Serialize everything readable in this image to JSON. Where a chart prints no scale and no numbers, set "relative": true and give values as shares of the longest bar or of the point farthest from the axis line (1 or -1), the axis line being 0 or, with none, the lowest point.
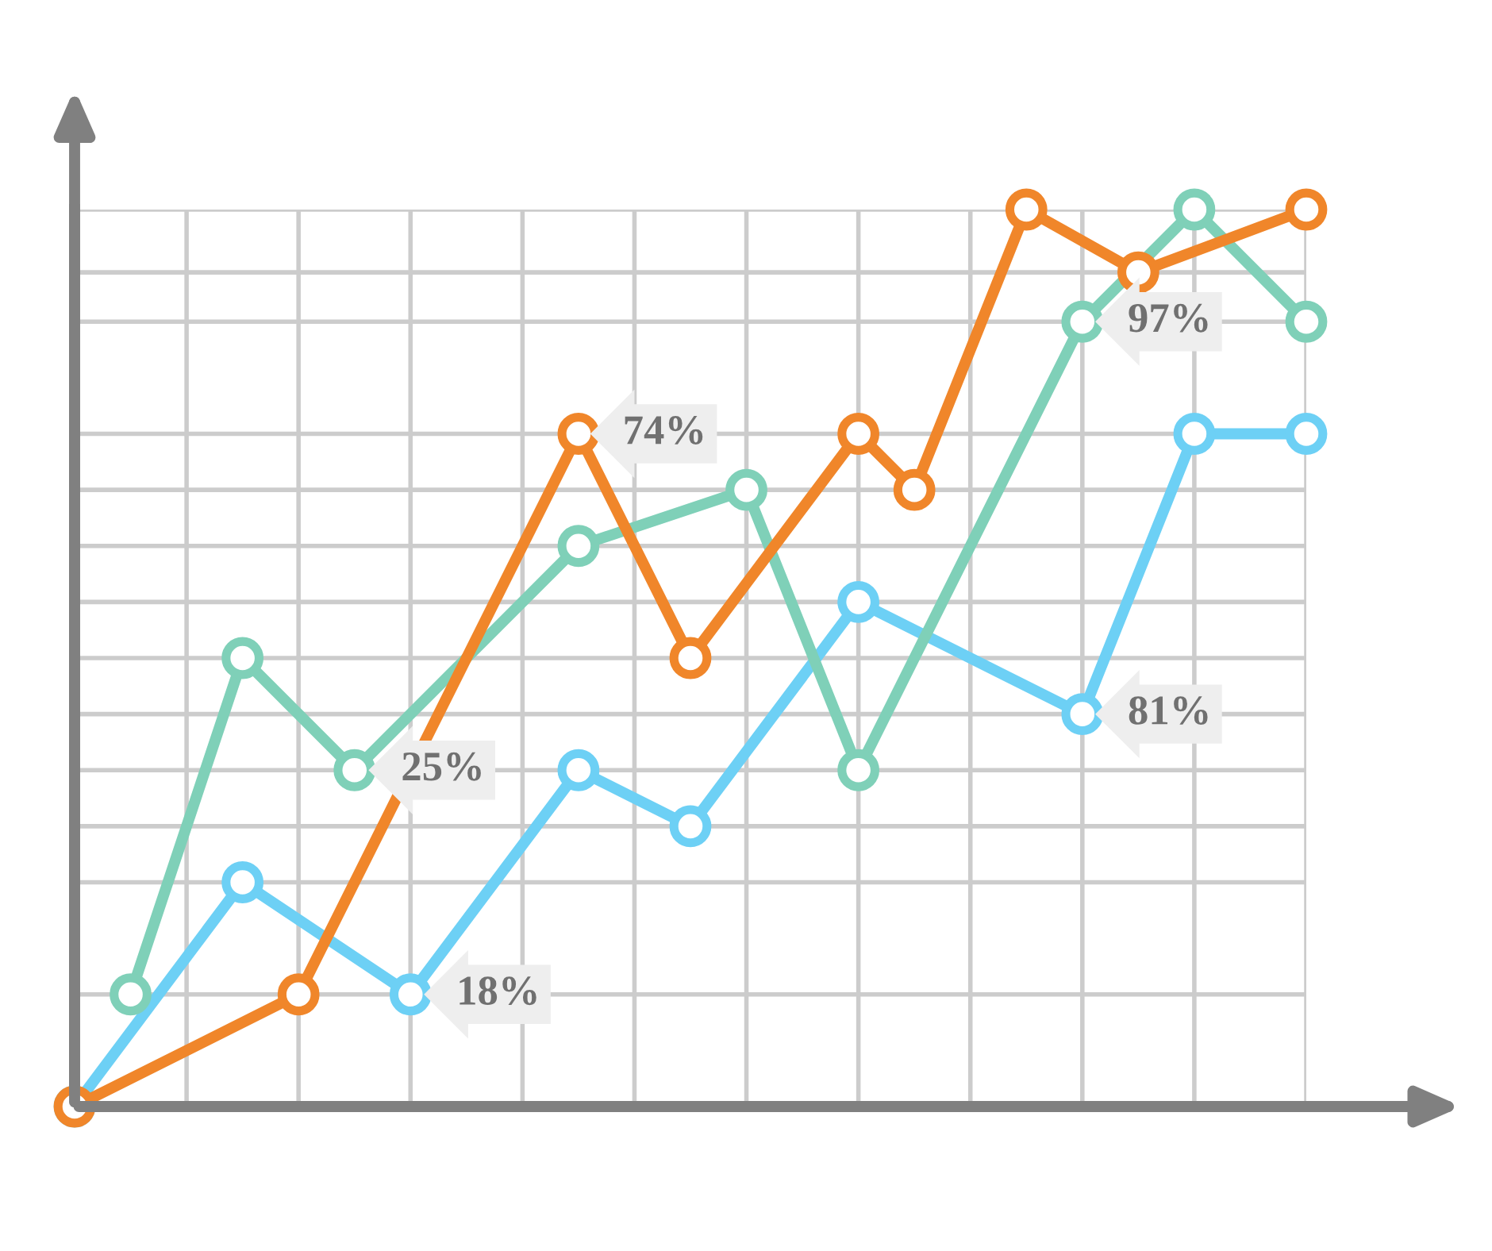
{
  "chart_data": {
    "type": "line",
    "relative": true,
    "categories": [
      null,
      null,
      null,
      null,
      null,
      null,
      null,
      null,
      null,
      null,
      null,
      null,
      null,
      null,
      null,
      null,
      null,
      null,
      null,
      null,
      null,
      null,
      null
    ],
    "grid": true,
    "marker": "circle",
    "line_style": "solid",
    "series": [
      {
        "color": "#6dd0f5",
        "values": [
          0,
          null,
          null,
          0.25,
          null,
          null,
          0.125,
          null,
          null,
          0.375,
          null,
          0.3125,
          null,
          null,
          0.5625,
          null,
          null,
          null,
          0.4375,
          null,
          0.75,
          null,
          0.75
        ]
      },
      {
        "color": "#7fd0b8",
        "values": [
          null,
          0.125,
          null,
          0.5,
          null,
          0.375,
          null,
          null,
          null,
          0.625,
          null,
          null,
          0.6875,
          null,
          0.375,
          null,
          null,
          null,
          0.875,
          null,
          1,
          null,
          0.875
        ]
      },
      {
        "color": "#f0862a",
        "values": [
          0,
          null,
          null,
          null,
          0.125,
          null,
          null,
          null,
          null,
          0.75,
          null,
          0.5,
          null,
          null,
          0.75,
          0.6875,
          null,
          1,
          null,
          0.93,
          null,
          null,
          1
        ]
      }
    ],
    "annotations": [
      "74%",
      "25%",
      "18%",
      "97%",
      "81%"
    ]
  }
}
